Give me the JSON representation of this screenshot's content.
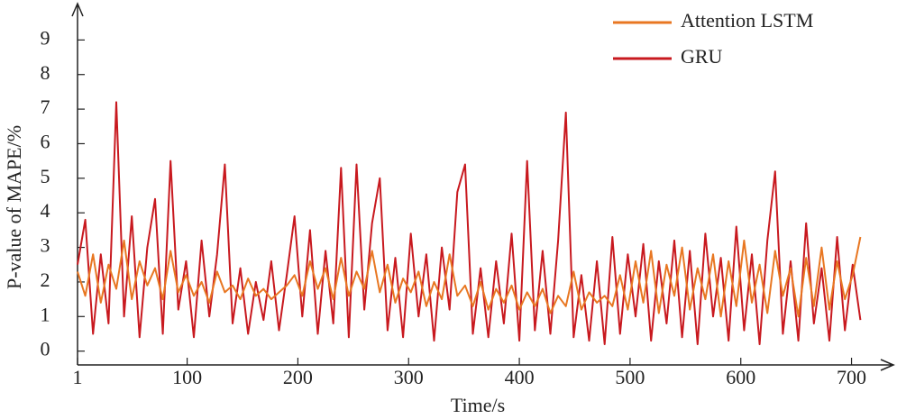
{
  "chart_data": {
    "type": "line",
    "xlabel": "Time/s",
    "ylabel": "P-value of MAPE/%",
    "legend": "top-right",
    "x": [
      1,
      8,
      15,
      22,
      29,
      36,
      43,
      50,
      57,
      64,
      71,
      78,
      85,
      92,
      99,
      106,
      113,
      120,
      127,
      134,
      141,
      148,
      155,
      162,
      169,
      176,
      183,
      190,
      197,
      204,
      211,
      218,
      225,
      232,
      239,
      246,
      253,
      260,
      267,
      274,
      281,
      288,
      295,
      302,
      309,
      316,
      323,
      330,
      337,
      344,
      351,
      358,
      365,
      372,
      379,
      386,
      393,
      400,
      407,
      414,
      421,
      428,
      435,
      442,
      449,
      456,
      463,
      470,
      477,
      484,
      491,
      498,
      505,
      512,
      519,
      526,
      533,
      540,
      547,
      554,
      561,
      568,
      575,
      582,
      589,
      596,
      603,
      610,
      617,
      624,
      631,
      638,
      645,
      652,
      659,
      666,
      673,
      680,
      687,
      694,
      701,
      708
    ],
    "series": [
      {
        "name": "Attention LSTM",
        "color": "#e87722",
        "values": [
          2.3,
          1.6,
          2.8,
          1.4,
          2.5,
          1.8,
          3.2,
          1.5,
          2.6,
          1.9,
          2.4,
          1.5,
          2.9,
          1.7,
          2.2,
          1.6,
          2.0,
          1.4,
          2.3,
          1.7,
          1.9,
          1.5,
          2.1,
          1.6,
          1.8,
          1.5,
          1.7,
          1.9,
          2.2,
          1.6,
          2.6,
          1.8,
          2.4,
          1.5,
          2.7,
          1.6,
          2.3,
          1.8,
          2.9,
          1.7,
          2.5,
          1.4,
          2.1,
          1.7,
          2.3,
          1.3,
          2.0,
          1.5,
          2.8,
          1.6,
          1.9,
          1.3,
          2.0,
          1.2,
          1.8,
          1.4,
          1.9,
          1.2,
          1.7,
          1.3,
          1.8,
          1.1,
          1.6,
          1.3,
          2.3,
          1.2,
          1.7,
          1.4,
          1.6,
          1.3,
          2.2,
          1.2,
          2.6,
          1.4,
          2.9,
          1.1,
          2.5,
          1.6,
          3.0,
          1.2,
          2.4,
          1.5,
          2.8,
          1.0,
          2.6,
          1.3,
          3.2,
          1.4,
          2.5,
          1.1,
          2.9,
          1.6,
          2.4,
          1.0,
          2.7,
          1.3,
          3.0,
          1.2,
          2.6,
          1.5,
          2.2,
          3.3
        ]
      },
      {
        "name": "GRU",
        "color": "#c8191f",
        "values": [
          2.5,
          3.8,
          0.5,
          2.8,
          0.8,
          7.2,
          1.0,
          3.9,
          0.4,
          3.0,
          4.4,
          0.5,
          5.5,
          1.2,
          2.6,
          0.4,
          3.2,
          1.0,
          2.8,
          5.4,
          0.8,
          2.4,
          0.5,
          2.0,
          0.9,
          2.6,
          0.6,
          2.2,
          3.9,
          1.0,
          3.5,
          0.5,
          2.9,
          0.8,
          5.3,
          0.4,
          5.4,
          1.2,
          3.7,
          5.0,
          0.6,
          2.7,
          0.4,
          3.4,
          1.0,
          2.8,
          0.3,
          3.0,
          1.2,
          4.6,
          5.4,
          0.5,
          2.4,
          0.4,
          2.6,
          0.8,
          3.4,
          0.3,
          5.5,
          0.6,
          2.9,
          0.5,
          3.2,
          6.9,
          0.4,
          2.2,
          0.3,
          2.6,
          0.2,
          3.3,
          0.5,
          2.8,
          1.0,
          3.1,
          0.3,
          2.6,
          0.8,
          3.2,
          0.4,
          2.9,
          0.2,
          3.4,
          1.0,
          2.7,
          0.3,
          3.6,
          0.6,
          2.8,
          0.2,
          3.2,
          5.2,
          0.5,
          2.6,
          0.3,
          3.7,
          0.8,
          2.4,
          0.3,
          3.3,
          0.6,
          2.5,
          0.9
        ]
      }
    ],
    "xlim": [
      1,
      737
    ],
    "xticks": [
      1,
      100,
      200,
      300,
      400,
      500,
      600,
      700
    ],
    "ylim": [
      -0.4,
      10
    ],
    "yticks": [
      0,
      1,
      2,
      3,
      4,
      5,
      6,
      7,
      8,
      9
    ]
  }
}
